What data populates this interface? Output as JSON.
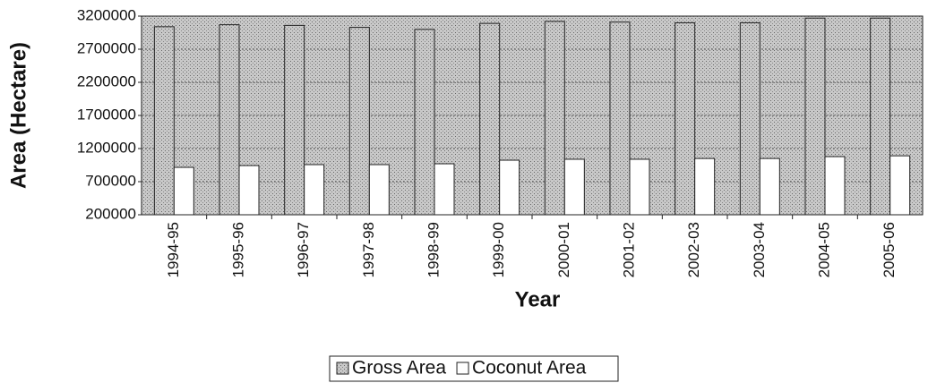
{
  "chart_data": {
    "type": "bar",
    "categories": [
      "1994-95",
      "1995-96",
      "1996-97",
      "1997-98",
      "1998-99",
      "1999-00",
      "2000-01",
      "2001-02",
      "2002-03",
      "2003-04",
      "2004-05",
      "2005-06"
    ],
    "series": [
      {
        "name": "Gross Area",
        "color": "#b8b8b8",
        "values": [
          3040000,
          3070000,
          3060000,
          3030000,
          3000000,
          3090000,
          3120000,
          3110000,
          3100000,
          3100000,
          3170000,
          3170000
        ]
      },
      {
        "name": "Coconut Area",
        "color": "#ffffff",
        "values": [
          916000,
          943000,
          957000,
          957000,
          970000,
          1024000,
          1038000,
          1038000,
          1050000,
          1050000,
          1078000,
          1090000
        ]
      }
    ],
    "ylabel": "Area (Hectare)",
    "xlabel": "Year",
    "ylim": [
      200000,
      3200000
    ],
    "yticks": [
      200000,
      700000,
      1200000,
      1700000,
      2200000,
      2700000,
      3200000
    ],
    "grid": true,
    "legend": "bottom"
  }
}
